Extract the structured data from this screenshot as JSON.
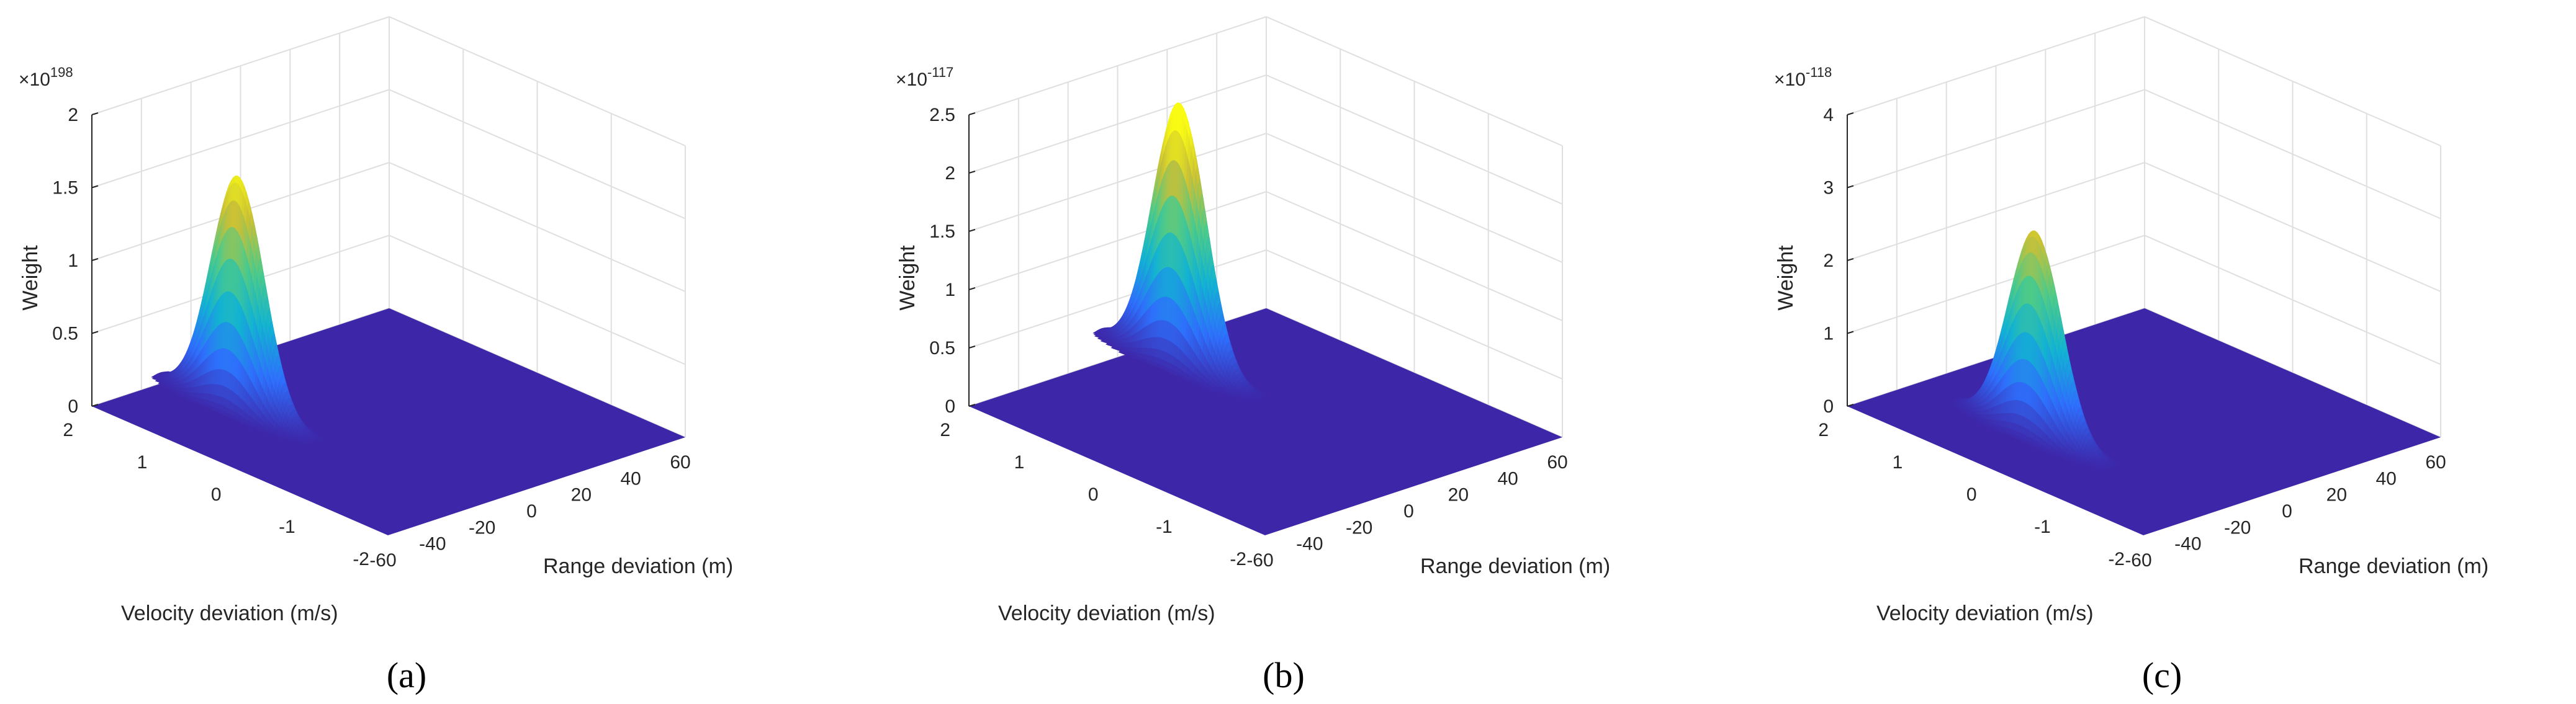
{
  "chart_data": [
    {
      "type": "surface",
      "subplot_label": "(a)",
      "xlabel": "Range deviation (m)",
      "ylabel": "Velocity deviation (m/s)",
      "zlabel": "Weight",
      "z_multiplier": "×10",
      "z_exponent": "198",
      "xlim": [
        -60,
        60
      ],
      "ylim": [
        -2,
        2
      ],
      "zlim": [
        0,
        2
      ],
      "x_ticks": [
        "-60",
        "-40",
        "-20",
        "0",
        "20",
        "40",
        "60"
      ],
      "y_ticks": [
        "-2",
        "-1",
        "0",
        "1",
        "2"
      ],
      "z_ticks": [
        "0",
        "0.5",
        "1",
        "1.5",
        "2"
      ],
      "peak": {
        "range": -28,
        "velocity": 1.1,
        "weight": 1.6,
        "range_width": 2.5,
        "velocity_width": 0.35
      },
      "colormap": [
        "#3e26a8",
        "#2e6ffc",
        "#12b3d2",
        "#4cca8a",
        "#c9c036",
        "#f9fb15"
      ]
    },
    {
      "type": "surface",
      "subplot_label": "(b)",
      "xlabel": "Range deviation (m)",
      "ylabel": "Velocity deviation (m/s)",
      "zlabel": "Weight",
      "z_multiplier": "×10",
      "z_exponent": "-117",
      "xlim": [
        -60,
        60
      ],
      "ylim": [
        -2,
        2
      ],
      "zlim": [
        0,
        2.5
      ],
      "x_ticks": [
        "-60",
        "-40",
        "-20",
        "0",
        "20",
        "40",
        "60"
      ],
      "y_ticks": [
        "-2",
        "-1",
        "0",
        "1",
        "2"
      ],
      "z_ticks": [
        "0",
        "0.5",
        "1",
        "1.5",
        "2",
        "2.5"
      ],
      "peak": {
        "range": 10,
        "velocity": 1.5,
        "weight": 2.25,
        "range_width": 2.5,
        "velocity_width": 0.35
      },
      "colormap": [
        "#3e26a8",
        "#2e6ffc",
        "#12b3d2",
        "#4cca8a",
        "#c9c036",
        "#f9fb15"
      ]
    },
    {
      "type": "surface",
      "subplot_label": "(c)",
      "xlabel": "Range deviation (m)",
      "ylabel": "Velocity deviation (m/s)",
      "zlabel": "Weight",
      "z_multiplier": "×10",
      "z_exponent": "-118",
      "xlim": [
        -60,
        60
      ],
      "ylim": [
        -2,
        2
      ],
      "zlim": [
        0,
        4
      ],
      "x_ticks": [
        "-60",
        "-40",
        "-20",
        "0",
        "20",
        "40",
        "60"
      ],
      "y_ticks": [
        "-2",
        "-1",
        "0",
        "1",
        "2"
      ],
      "z_ticks": [
        "0",
        "1",
        "2",
        "3",
        "4"
      ],
      "peak": {
        "range": -32,
        "velocity": 0.4,
        "weight": 2.8,
        "range_width": 2.5,
        "velocity_width": 0.35
      },
      "colormap": [
        "#3e26a8",
        "#2e6ffc",
        "#12b3d2",
        "#4cca8a",
        "#c9c036",
        "#f9fb15"
      ]
    }
  ]
}
